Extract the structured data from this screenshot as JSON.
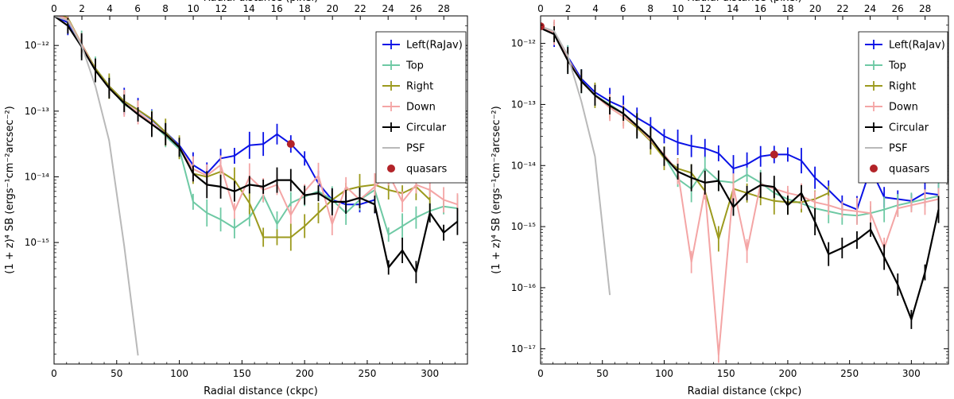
{
  "chart_data": [
    {
      "type": "line",
      "title": "",
      "xlabel": "Radial distance (ckpc)",
      "x2label": "Radial distance (pixel)",
      "ylabel": "(1 + z)⁴ SB (ergs⁻¹cm⁻²arcsec⁻²)",
      "xlim": [
        0,
        330
      ],
      "x2lim": [
        0,
        29.7
      ],
      "ylim_log10": [
        -16.85,
        -11.55
      ],
      "xticks": [
        0,
        50,
        100,
        150,
        200,
        250,
        300
      ],
      "x2ticks": [
        0,
        2,
        4,
        6,
        8,
        10,
        12,
        14,
        16,
        18,
        20,
        22,
        24,
        26,
        28
      ],
      "yticks": [
        {
          "exp": -12,
          "label": "10⁻¹²"
        },
        {
          "exp": -13,
          "label": "10⁻¹³"
        },
        {
          "exp": -14,
          "label": "10⁻¹⁴"
        },
        {
          "exp": -15,
          "label": "10⁻¹⁵"
        }
      ],
      "legend_position": "top-right",
      "series": [
        {
          "name": "Left(RaJav)",
          "color": "#0a12e6",
          "errorbars": true,
          "x": [
            0,
            11,
            22,
            33,
            44,
            56,
            67,
            78,
            89,
            100,
            111,
            122,
            133,
            144,
            156,
            167,
            178,
            189,
            200,
            211,
            222,
            233,
            244,
            256
          ],
          "log_y": [
            -11.55,
            -11.65,
            -12.0,
            -12.35,
            -12.62,
            -12.85,
            -12.98,
            -13.13,
            -13.32,
            -13.52,
            -13.82,
            -13.95,
            -13.72,
            -13.68,
            -13.52,
            -13.5,
            -13.35,
            -13.5,
            -13.72,
            -14.1,
            -14.35,
            -14.42,
            -14.42,
            -14.35
          ]
        },
        {
          "name": "Top",
          "color": "#6ec9a4",
          "errorbars": true,
          "x": [
            0,
            11,
            22,
            33,
            44,
            56,
            67,
            78,
            89,
            100,
            111,
            122,
            133,
            144,
            156,
            167,
            178,
            189,
            200,
            211,
            222,
            233,
            244,
            256,
            267,
            278,
            289,
            300,
            311,
            322
          ],
          "log_y": [
            -11.52,
            -11.58,
            -11.98,
            -12.35,
            -12.62,
            -12.9,
            -13.02,
            -13.18,
            -13.38,
            -13.58,
            -14.38,
            -14.55,
            -14.65,
            -14.78,
            -14.62,
            -14.28,
            -14.72,
            -14.4,
            -14.3,
            -14.22,
            -14.35,
            -14.55,
            -14.35,
            -14.2,
            -14.88,
            -14.75,
            -14.62,
            -14.52,
            -14.45,
            -14.48
          ]
        },
        {
          "name": "Right",
          "color": "#9c9a1e",
          "errorbars": true,
          "x": [
            0,
            11,
            22,
            33,
            44,
            56,
            67,
            78,
            89,
            100,
            111,
            122,
            133,
            144,
            156,
            167,
            178,
            189,
            200,
            211,
            222,
            233,
            244,
            256,
            267,
            278,
            289,
            300
          ],
          "log_y": [
            -11.52,
            -11.58,
            -11.98,
            -12.35,
            -12.62,
            -12.85,
            -12.98,
            -13.12,
            -13.32,
            -13.55,
            -13.95,
            -14.0,
            -13.92,
            -14.05,
            -14.4,
            -14.92,
            -14.92,
            -14.92,
            -14.75,
            -14.55,
            -14.35,
            -14.2,
            -14.15,
            -14.12,
            -14.2,
            -14.25,
            -14.15,
            -14.35
          ]
        },
        {
          "name": "Down",
          "color": "#f4a5a5",
          "errorbars": true,
          "x": [
            0,
            11,
            22,
            33,
            44,
            56,
            67,
            78,
            89,
            100,
            111,
            122,
            133,
            144,
            156,
            167,
            178,
            189,
            200,
            211,
            222,
            233,
            244,
            256,
            267,
            278,
            289,
            300,
            311,
            322
          ],
          "log_y": [
            -11.52,
            -11.6,
            -11.98,
            -12.38,
            -12.65,
            -12.88,
            -13.02,
            -13.18,
            -13.35,
            -13.55,
            -13.88,
            -13.98,
            -13.82,
            -14.52,
            -14.0,
            -14.2,
            -14.12,
            -14.58,
            -14.22,
            -13.98,
            -14.72,
            -14.15,
            -14.35,
            -14.15,
            -13.95,
            -14.38,
            -14.12,
            -14.2,
            -14.35,
            -14.42
          ]
        },
        {
          "name": "Circular",
          "color": "#000000",
          "errorbars": true,
          "x": [
            0,
            11,
            22,
            33,
            44,
            56,
            67,
            78,
            89,
            100,
            111,
            122,
            133,
            144,
            156,
            167,
            178,
            189,
            200,
            211,
            222,
            233,
            244,
            256,
            267,
            278,
            289,
            300,
            311,
            322
          ],
          "log_y": [
            -11.55,
            -11.7,
            -12.02,
            -12.38,
            -12.65,
            -12.88,
            -13.05,
            -13.2,
            -13.35,
            -13.55,
            -13.95,
            -14.12,
            -14.15,
            -14.22,
            -14.12,
            -14.15,
            -14.05,
            -14.05,
            -14.28,
            -14.25,
            -14.38,
            -14.38,
            -14.32,
            -14.42,
            -15.38,
            -15.12,
            -15.45,
            -14.55,
            -14.85,
            -14.68
          ]
        },
        {
          "name": "PSF",
          "color": "#b9b9b9",
          "errorbars": false,
          "x": [
            0,
            11,
            22,
            33,
            44,
            56,
            67
          ],
          "log_y": [
            -11.55,
            -11.62,
            -12.0,
            -12.62,
            -13.45,
            -15.05,
            -16.72
          ]
        },
        {
          "name": "quasars",
          "color": "#b22328",
          "type": "scatter",
          "x": [
            0,
            189
          ],
          "log_y": [
            -11.48,
            -13.5
          ]
        }
      ]
    },
    {
      "type": "line",
      "title": "",
      "xlabel": "Radial distance (ckpc)",
      "x2label": "Radial distance (pixel)",
      "ylabel": "(1 + z)⁴ SB (ergs⁻¹cm⁻²arcsec⁻²)",
      "xlim": [
        0,
        330
      ],
      "x2lim": [
        0,
        29.7
      ],
      "ylim_log10": [
        -17.25,
        -11.55
      ],
      "xticks": [
        0,
        50,
        100,
        150,
        200,
        250,
        300
      ],
      "x2ticks": [
        0,
        2,
        4,
        6,
        8,
        10,
        12,
        14,
        16,
        18,
        20,
        22,
        24,
        26,
        28
      ],
      "yticks": [
        {
          "exp": -12,
          "label": "10⁻¹²"
        },
        {
          "exp": -13,
          "label": "10⁻¹³"
        },
        {
          "exp": -14,
          "label": "10⁻¹⁴"
        },
        {
          "exp": -15,
          "label": "10⁻¹⁵"
        },
        {
          "exp": -16,
          "label": "10⁻¹⁶"
        },
        {
          "exp": -17,
          "label": "10⁻¹⁷"
        }
      ],
      "legend_position": "top-right",
      "series": [
        {
          "name": "Left(RaJav)",
          "color": "#0a12e6",
          "errorbars": true,
          "x": [
            0,
            11,
            22,
            33,
            44,
            56,
            67,
            78,
            89,
            100,
            111,
            122,
            133,
            144,
            156,
            167,
            178,
            189,
            200,
            211,
            222,
            233,
            244,
            256,
            267,
            278,
            289,
            300,
            311,
            322
          ],
          "log_y": [
            -11.72,
            -11.85,
            -12.22,
            -12.58,
            -12.8,
            -12.95,
            -13.05,
            -13.22,
            -13.35,
            -13.52,
            -13.62,
            -13.68,
            -13.72,
            -13.8,
            -14.05,
            -13.98,
            -13.85,
            -13.82,
            -13.82,
            -13.92,
            -14.2,
            -14.4,
            -14.62,
            -14.72,
            -14.05,
            -14.52,
            -14.55,
            -14.58,
            -14.45,
            -14.48
          ]
        },
        {
          "name": "Top",
          "color": "#6ec9a4",
          "errorbars": true,
          "x": [
            0,
            11,
            22,
            33,
            44,
            56,
            67,
            78,
            89,
            100,
            111,
            122,
            133,
            144,
            156,
            167,
            178,
            189,
            200,
            211,
            222,
            233,
            244,
            256,
            267,
            278,
            289,
            300,
            311,
            322
          ],
          "log_y": [
            -11.75,
            -11.82,
            -12.25,
            -12.62,
            -12.85,
            -13.0,
            -13.15,
            -13.35,
            -13.55,
            -13.85,
            -14.22,
            -14.38,
            -14.05,
            -14.25,
            -14.28,
            -14.15,
            -14.28,
            -14.45,
            -14.55,
            -14.62,
            -14.7,
            -14.75,
            -14.8,
            -14.82,
            -14.78,
            -14.72,
            -14.65,
            -14.6,
            -14.55,
            -14.5
          ]
        },
        {
          "name": "Right",
          "color": "#9c9a1e",
          "errorbars": true,
          "x": [
            0,
            11,
            22,
            33,
            44,
            56,
            67,
            78,
            89,
            100,
            111,
            122,
            133,
            144,
            156,
            167,
            178,
            189,
            200,
            211,
            222,
            233
          ],
          "log_y": [
            -11.75,
            -11.82,
            -12.25,
            -12.62,
            -12.85,
            -13.05,
            -13.2,
            -13.38,
            -13.6,
            -13.88,
            -14.05,
            -14.12,
            -14.42,
            -15.2,
            -14.38,
            -14.45,
            -14.52,
            -14.58,
            -14.6,
            -14.6,
            -14.55,
            -14.45
          ]
        },
        {
          "name": "Down",
          "color": "#f4a5a5",
          "errorbars": true,
          "x": [
            0,
            11,
            22,
            33,
            44,
            56,
            67,
            78,
            89,
            100,
            111,
            122,
            133,
            144,
            156,
            167,
            178,
            189,
            200,
            211,
            222,
            233,
            244,
            256,
            267,
            278,
            289,
            300,
            311,
            322
          ],
          "log_y": [
            -11.75,
            -11.82,
            -12.25,
            -12.62,
            -12.85,
            -13.05,
            -13.2,
            -13.35,
            -13.58,
            -13.82,
            -14.1,
            -15.58,
            -14.4,
            -17.1,
            -14.35,
            -15.4,
            -14.3,
            -14.38,
            -14.45,
            -14.5,
            -14.6,
            -14.65,
            -14.72,
            -14.75,
            -14.78,
            -15.35,
            -14.7,
            -14.65,
            -14.6,
            -14.55
          ]
        },
        {
          "name": "Circular",
          "color": "#000000",
          "errorbars": true,
          "x": [
            0,
            11,
            22,
            33,
            44,
            56,
            67,
            78,
            89,
            100,
            111,
            122,
            133,
            144,
            156,
            167,
            178,
            189,
            200,
            211,
            222,
            233,
            244,
            256,
            267,
            278,
            289,
            300,
            311,
            322
          ],
          "log_y": [
            -11.75,
            -11.85,
            -12.28,
            -12.62,
            -12.85,
            -13.02,
            -13.15,
            -13.35,
            -13.55,
            -13.85,
            -14.1,
            -14.2,
            -14.28,
            -14.25,
            -14.68,
            -14.45,
            -14.32,
            -14.35,
            -14.65,
            -14.45,
            -14.92,
            -15.45,
            -15.35,
            -15.22,
            -15.05,
            -15.5,
            -15.95,
            -16.52,
            -15.75,
            -14.72
          ]
        },
        {
          "name": "PSF",
          "color": "#b9b9b9",
          "errorbars": false,
          "x": [
            0,
            11,
            22,
            33,
            44,
            56
          ],
          "log_y": [
            -11.72,
            -11.8,
            -12.2,
            -12.95,
            -13.85,
            -16.12
          ]
        },
        {
          "name": "quasars",
          "color": "#b22328",
          "type": "scatter",
          "x": [
            0,
            189
          ],
          "log_y": [
            -11.72,
            -13.82
          ]
        }
      ]
    }
  ]
}
